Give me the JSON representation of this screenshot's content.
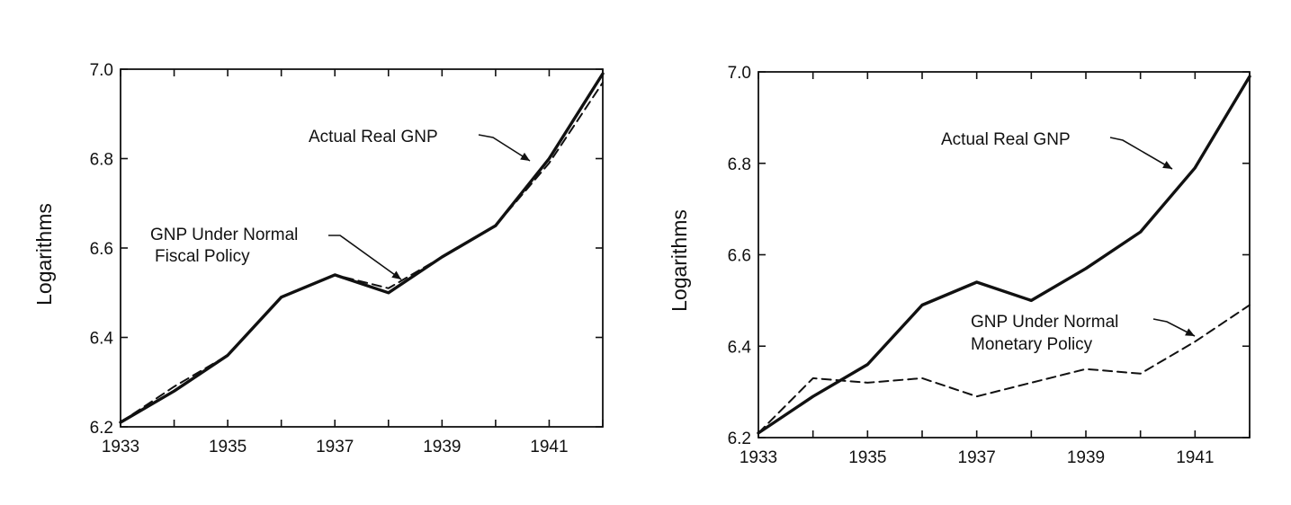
{
  "chart_data": [
    {
      "type": "line",
      "ylabel": "Logarithms",
      "xlabel": "",
      "title": "",
      "xlim": [
        1933,
        1942
      ],
      "ylim": [
        6.2,
        7.0
      ],
      "x_ticks": [
        1933,
        1934,
        1935,
        1936,
        1937,
        1938,
        1939,
        1940,
        1941,
        1942
      ],
      "x_tick_labels": [
        "1933",
        "1935",
        "1937",
        "1939",
        "1941"
      ],
      "y_ticks": [
        6.2,
        6.4,
        6.6,
        6.8,
        7.0
      ],
      "y_tick_labels": [
        "6.2",
        "6.4",
        "6.6",
        "6.8",
        "7.0"
      ],
      "grid": false,
      "series": [
        {
          "style": "solid",
          "x": [
            1933,
            1934,
            1935,
            1936,
            1937,
            1938,
            1939,
            1940,
            1941,
            1942
          ],
          "values": [
            6.21,
            6.28,
            6.36,
            6.49,
            6.54,
            6.5,
            6.58,
            6.65,
            6.8,
            6.99
          ]
        },
        {
          "style": "dashed",
          "x": [
            1933,
            1934,
            1935,
            1936,
            1937,
            1938,
            1939,
            1940,
            1941,
            1942
          ],
          "values": [
            6.21,
            6.29,
            6.36,
            6.49,
            6.54,
            6.51,
            6.58,
            6.65,
            6.79,
            6.97
          ]
        }
      ],
      "annotations": [
        {
          "text": "Actual Real GNP",
          "points_to": "solid",
          "at_x": 1941
        },
        {
          "text": "GNP Under Normal",
          "text2": "Fiscal Policy",
          "points_to": "dashed",
          "at_x": 1938.3
        }
      ]
    },
    {
      "type": "line",
      "ylabel": "Logarithms",
      "xlabel": "",
      "title": "",
      "xlim": [
        1933,
        1942
      ],
      "ylim": [
        6.2,
        7.0
      ],
      "x_ticks": [
        1933,
        1934,
        1935,
        1936,
        1937,
        1938,
        1939,
        1940,
        1941,
        1942
      ],
      "x_tick_labels": [
        "1933",
        "1935",
        "1937",
        "1939",
        "1941"
      ],
      "y_ticks": [
        6.2,
        6.4,
        6.6,
        6.8,
        7.0
      ],
      "y_tick_labels": [
        "6.2",
        "6.4",
        "6.6",
        "6.8",
        "7.0"
      ],
      "grid": false,
      "series": [
        {
          "style": "solid",
          "x": [
            1933,
            1934,
            1935,
            1936,
            1937,
            1938,
            1939,
            1940,
            1941,
            1942
          ],
          "values": [
            6.21,
            6.29,
            6.36,
            6.49,
            6.54,
            6.5,
            6.57,
            6.65,
            6.79,
            6.99
          ]
        },
        {
          "style": "dashed",
          "x": [
            1933,
            1934,
            1935,
            1936,
            1937,
            1938,
            1939,
            1940,
            1941,
            1942
          ],
          "values": [
            6.21,
            6.33,
            6.32,
            6.33,
            6.29,
            6.32,
            6.35,
            6.34,
            6.41,
            6.49
          ]
        }
      ],
      "annotations": [
        {
          "text": "Actual Real GNP",
          "points_to": "solid",
          "at_x": 1940.9
        },
        {
          "text": "GNP Under Normal",
          "text2": "Monetary Policy",
          "points_to": "dashed",
          "at_x": 1941.2
        }
      ]
    }
  ]
}
